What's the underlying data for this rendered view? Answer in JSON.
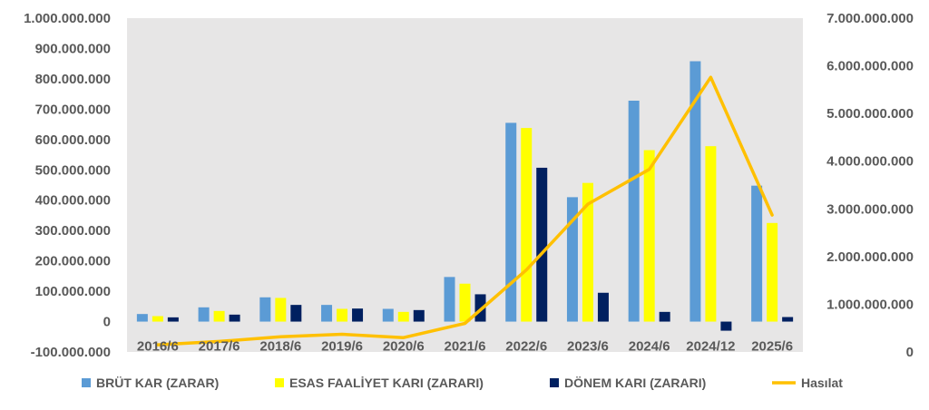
{
  "chart_data": {
    "type": "bar",
    "title": "",
    "categories": [
      "2016/6",
      "2017/6",
      "2018/6",
      "2019/6",
      "2020/6",
      "2021/6",
      "2022/6",
      "2023/6",
      "2024/6",
      "2024/12",
      "2025/6"
    ],
    "series": [
      {
        "name": "BRÜT KAR (ZARAR)",
        "type": "bar",
        "axis": "left",
        "color": "#5B9BD5",
        "values": [
          25000000,
          47000000,
          80000000,
          55000000,
          42000000,
          147000000,
          655000000,
          410000000,
          728000000,
          858000000,
          448000000
        ]
      },
      {
        "name": "ESAS FAALİYET KARI (ZARARI)",
        "type": "bar",
        "axis": "left",
        "color": "#FFFF00",
        "values": [
          18000000,
          35000000,
          78000000,
          42000000,
          32000000,
          125000000,
          638000000,
          457000000,
          565000000,
          578000000,
          325000000
        ]
      },
      {
        "name": "DÖNEM KARI (ZARARI)",
        "type": "bar",
        "axis": "left",
        "color": "#002060",
        "values": [
          14000000,
          23000000,
          55000000,
          43000000,
          38000000,
          90000000,
          507000000,
          95000000,
          32000000,
          -30000000,
          15000000
        ]
      },
      {
        "name": "Hasılat",
        "type": "line",
        "axis": "right",
        "color": "#FFC000",
        "values": [
          150000000,
          220000000,
          320000000,
          370000000,
          300000000,
          600000000,
          1720000000,
          3100000000,
          3830000000,
          5760000000,
          2870000000
        ]
      }
    ],
    "left_axis": {
      "min": -100000000,
      "max": 1000000000,
      "step": 100000000,
      "tick_labels": [
        "-100.000.000",
        "0",
        "100.000.000",
        "200.000.000",
        "300.000.000",
        "400.000.000",
        "500.000.000",
        "600.000.000",
        "700.000.000",
        "800.000.000",
        "900.000.000",
        "1.000.000.000"
      ]
    },
    "right_axis": {
      "min": 0,
      "max": 7000000000,
      "step": 1000000000,
      "tick_labels": [
        "0",
        "1.000.000.000",
        "2.000.000.000",
        "3.000.000.000",
        "4.000.000.000",
        "5.000.000.000",
        "6.000.000.000",
        "7.000.000.000"
      ]
    },
    "grid": false,
    "legend_position": "bottom",
    "plot_background": "#E7E6E6"
  }
}
